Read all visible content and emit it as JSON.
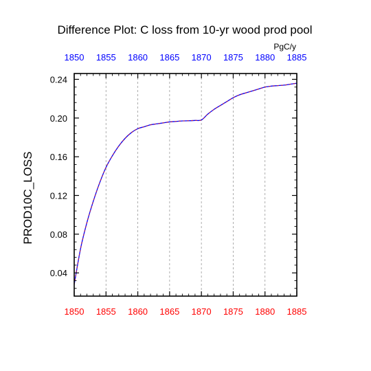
{
  "chart_data": {
    "type": "line",
    "title": "Difference Plot: C loss from 10-yr wood prod pool",
    "units": "PgC/y",
    "ylabel": "PROD10C_LOSS",
    "xlabel": "",
    "xlim": [
      1850,
      1885
    ],
    "ylim": [
      0.016,
      0.246
    ],
    "x_ticks": [
      1850,
      1855,
      1860,
      1865,
      1870,
      1875,
      1880,
      1885
    ],
    "y_ticks": [
      0.04,
      0.08,
      0.12,
      0.16,
      0.2,
      0.24
    ],
    "y_tick_labels": [
      "0.04",
      "0.08",
      "0.12",
      "0.16",
      "0.20",
      "0.24"
    ],
    "grid": "vertical dashed at x ticks",
    "series": [
      {
        "x": [
          1850,
          1851,
          1852,
          1853,
          1854,
          1855,
          1856,
          1857,
          1858,
          1859,
          1860,
          1861,
          1862,
          1863,
          1864,
          1865,
          1866,
          1867,
          1868,
          1869,
          1870,
          1871,
          1872,
          1873,
          1874,
          1875,
          1876,
          1877,
          1878,
          1879,
          1880,
          1881,
          1882,
          1883,
          1884,
          1885
        ],
        "values": [
          0.028,
          0.065,
          0.092,
          0.114,
          0.133,
          0.149,
          0.161,
          0.171,
          0.179,
          0.185,
          0.189,
          0.191,
          0.193,
          0.194,
          0.195,
          0.196,
          0.1965,
          0.197,
          0.1972,
          0.1975,
          0.198,
          0.204,
          0.209,
          0.213,
          0.217,
          0.221,
          0.224,
          0.226,
          0.228,
          0.23,
          0.232,
          0.233,
          0.2335,
          0.234,
          0.235,
          0.236
        ],
        "color": "#0000ff",
        "overlay_color": "#aa1a55",
        "style": "solid line overlaid with dashed line"
      }
    ],
    "colors": {
      "bottom_tick_labels": "#ff0000",
      "top_tick_labels": "#0000ff",
      "grid": "#999999",
      "axes": "#000000"
    }
  }
}
